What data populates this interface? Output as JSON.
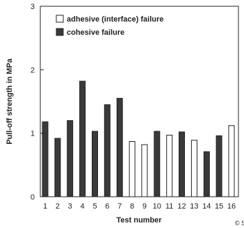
{
  "chart_data": {
    "type": "bar",
    "xlabel": "Test number",
    "ylabel": "Pull-off strength in MPa",
    "ylim": [
      0,
      3
    ],
    "yticks": [
      "0",
      "1",
      "2",
      "3"
    ],
    "categories": [
      "1",
      "2",
      "3",
      "4",
      "5",
      "6",
      "7",
      "8",
      "9",
      "10",
      "11",
      "12",
      "13",
      "14",
      "15",
      "16"
    ],
    "values": [
      1.18,
      0.92,
      1.2,
      1.82,
      1.03,
      1.45,
      1.55,
      0.87,
      0.82,
      1.03,
      0.97,
      1.02,
      0.89,
      0.71,
      0.96,
      1.12
    ],
    "failure_types": [
      "cohesive",
      "cohesive",
      "cohesive",
      "cohesive",
      "cohesive",
      "cohesive",
      "cohesive",
      "adhesive",
      "adhesive",
      "cohesive",
      "adhesive",
      "cohesive",
      "adhesive",
      "cohesive",
      "cohesive",
      "adhesive"
    ],
    "legend": [
      {
        "key": "adhesive",
        "label": "adhesive (interface) failure"
      },
      {
        "key": "cohesive",
        "label": "cohesive failure"
      }
    ],
    "legend_position": "top-right",
    "grid": false,
    "colors": {
      "cohesive": "#3a3a3a",
      "adhesive": "#ffffff",
      "outline": "#222222"
    }
  },
  "corner_mark": "© S"
}
